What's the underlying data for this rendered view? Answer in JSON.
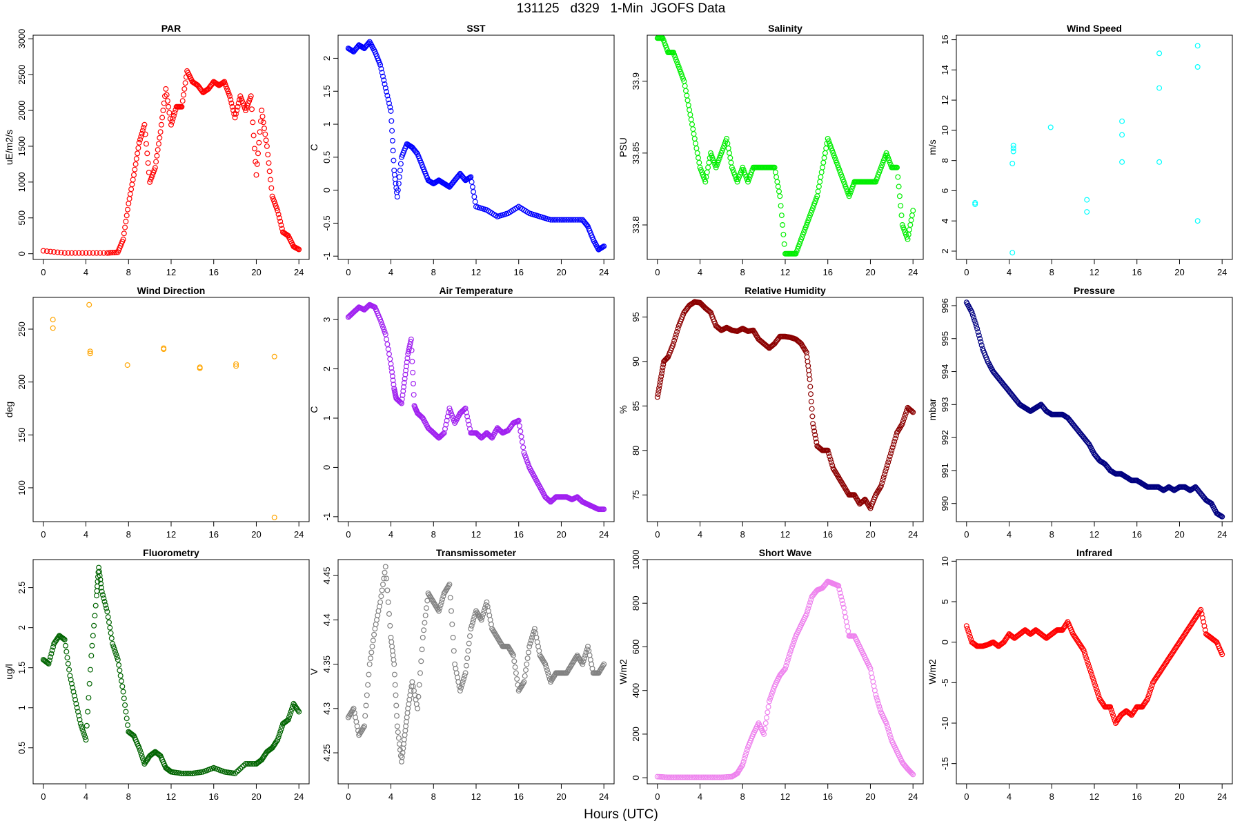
{
  "title": "131125   d329   1-Min  JGOFS Data",
  "xlabel": "Hours (UTC)",
  "chart_data": [
    {
      "type": "scatter",
      "title": "PAR",
      "ylabel": "uE/m2/s",
      "color": "#ff0000",
      "ylim": [
        -80,
        3050
      ],
      "yticks": [
        0,
        500,
        1000,
        1500,
        2000,
        2500,
        3000
      ],
      "xticks": [
        0,
        4,
        8,
        12,
        16,
        20,
        24
      ],
      "xlim": [
        -0.96,
        24.96
      ],
      "x": [
        0,
        2,
        4,
        6,
        7,
        7.5,
        8,
        8.5,
        9,
        9.5,
        10,
        10.5,
        11,
        11.5,
        12,
        12.5,
        13,
        13.5,
        14,
        14.5,
        15,
        15.5,
        16,
        16.5,
        17,
        17.5,
        18,
        18.5,
        19,
        19.5,
        20,
        20.5,
        21,
        21.5,
        22,
        22.5,
        23,
        23.5,
        24
      ],
      "y": [
        40,
        10,
        10,
        10,
        20,
        200,
        700,
        1100,
        1550,
        1800,
        1000,
        1200,
        1700,
        2300,
        1800,
        2050,
        2050,
        2550,
        2400,
        2350,
        2250,
        2300,
        2400,
        2350,
        2400,
        2200,
        1900,
        2200,
        2000,
        2200,
        1100,
        2000,
        1500,
        800,
        600,
        300,
        250,
        100,
        60
      ]
    },
    {
      "type": "scatter",
      "title": "SST",
      "ylabel": "C",
      "color": "#0000ff",
      "ylim": [
        -1.05,
        2.35
      ],
      "yticks": [
        -1,
        -0.5,
        0,
        0.5,
        1,
        1.5,
        2
      ],
      "xticks": [
        0,
        4,
        8,
        12,
        16,
        20,
        24
      ],
      "xlim": [
        -0.96,
        24.96
      ],
      "x": [
        0,
        0.5,
        1,
        1.5,
        2,
        2.5,
        3,
        3.5,
        4,
        4.3,
        4.6,
        5,
        5.5,
        6,
        6.5,
        7,
        7.5,
        8,
        8.5,
        9,
        9.5,
        10,
        10.5,
        11,
        11.5,
        12,
        13,
        14,
        15,
        16,
        17,
        18,
        19,
        20,
        21,
        22,
        22.5,
        23,
        23.5,
        24
      ],
      "y": [
        2.15,
        2.1,
        2.2,
        2.15,
        2.25,
        2.1,
        1.9,
        1.55,
        1.2,
        0.3,
        -0.1,
        0.5,
        0.7,
        0.65,
        0.55,
        0.35,
        0.15,
        0.1,
        0.15,
        0.1,
        0.05,
        0.15,
        0.25,
        0.15,
        0.2,
        -0.25,
        -0.3,
        -0.4,
        -0.35,
        -0.25,
        -0.35,
        -0.4,
        -0.45,
        -0.45,
        -0.45,
        -0.45,
        -0.55,
        -0.75,
        -0.9,
        -0.85
      ]
    },
    {
      "type": "scatter",
      "title": "Salinity",
      "ylabel": "PSU",
      "color": "#00ee00",
      "ylim": [
        33.776,
        33.932
      ],
      "yticks": [
        33.8,
        33.85,
        33.9
      ],
      "xticks": [
        0,
        4,
        8,
        12,
        16,
        20,
        24
      ],
      "xlim": [
        -0.96,
        24.96
      ],
      "x": [
        0,
        0.5,
        1,
        1.5,
        2,
        2.5,
        3,
        3.5,
        4,
        4.5,
        5,
        5.5,
        6,
        6.5,
        7,
        7.5,
        8,
        8.5,
        9,
        9.5,
        10,
        10.5,
        11,
        11.5,
        12,
        12.5,
        13,
        13.5,
        14,
        14.5,
        15,
        15.5,
        16,
        16.5,
        17,
        17.5,
        18,
        18.5,
        19,
        19.5,
        20,
        20.5,
        21,
        21.5,
        22,
        22.5,
        23,
        23.5,
        24
      ],
      "y": [
        33.93,
        33.93,
        33.92,
        33.92,
        33.91,
        33.9,
        33.88,
        33.86,
        33.84,
        33.83,
        33.85,
        33.84,
        33.85,
        33.86,
        33.84,
        33.83,
        33.84,
        33.83,
        33.84,
        33.84,
        33.84,
        33.84,
        33.84,
        33.82,
        33.78,
        33.78,
        33.78,
        33.79,
        33.8,
        33.81,
        33.82,
        33.84,
        33.86,
        33.85,
        33.84,
        33.83,
        33.82,
        33.83,
        33.83,
        33.83,
        33.83,
        33.83,
        33.84,
        33.85,
        33.84,
        33.84,
        33.8,
        33.79,
        33.81
      ]
    },
    {
      "type": "scatter",
      "title": "Wind Speed",
      "ylabel": "m/s",
      "color": "#00ffff",
      "ylim": [
        1.45,
        16.3
      ],
      "yticks": [
        2,
        4,
        6,
        8,
        10,
        12,
        14,
        16
      ],
      "xticks": [
        0,
        4,
        8,
        12,
        16,
        20,
        24
      ],
      "xlim": [
        -0.96,
        24.96
      ],
      "x": [
        0.8,
        0.8,
        4.3,
        4.3,
        4.4,
        4.4,
        4.4,
        7.9,
        11.3,
        11.3,
        14.6,
        14.6,
        14.6,
        18.1,
        18.1,
        18.1,
        21.7,
        21.7,
        21.7
      ],
      "y": [
        5.1,
        5.2,
        1.9,
        7.8,
        8.6,
        8.8,
        9,
        10.2,
        5.4,
        4.6,
        10.6,
        9.7,
        7.9,
        15.1,
        12.8,
        7.9,
        15.6,
        14.2,
        4
      ]
    },
    {
      "type": "scatter",
      "title": "Wind Direction",
      "ylabel": "deg",
      "color": "#ffa500",
      "ylim": [
        68,
        280
      ],
      "yticks": [
        100,
        150,
        200,
        250
      ],
      "xticks": [
        0,
        4,
        8,
        12,
        16,
        20,
        24
      ],
      "xlim": [
        -0.96,
        24.96
      ],
      "x": [
        0.9,
        0.9,
        4.3,
        4.4,
        4.4,
        7.9,
        11.3,
        11.3,
        14.7,
        14.7,
        18.1,
        18.1,
        21.7,
        21.7
      ],
      "y": [
        259,
        251,
        273,
        229,
        227,
        216,
        232,
        231,
        214,
        213,
        217,
        215,
        224,
        72
      ]
    },
    {
      "type": "scatter",
      "title": "Air Temperature",
      "ylabel": "C",
      "color": "#a020f0",
      "ylim": [
        -1.1,
        3.45
      ],
      "yticks": [
        -1,
        0,
        1,
        2,
        3
      ],
      "xticks": [
        0,
        4,
        8,
        12,
        16,
        20,
        24
      ],
      "xlim": [
        -0.96,
        24.96
      ],
      "x": [
        0,
        0.5,
        1,
        1.5,
        2,
        2.5,
        3,
        3.5,
        4,
        4.3,
        4.5,
        5,
        5.3,
        5.6,
        5.9,
        6.2,
        6.5,
        7,
        7.5,
        8,
        8.5,
        9,
        9.5,
        10,
        10.5,
        11,
        11.5,
        12,
        12.5,
        13,
        13.5,
        14,
        14.5,
        15,
        15.5,
        16,
        16.5,
        17,
        17.5,
        18,
        18.5,
        19,
        19.5,
        20,
        20.5,
        21,
        21.5,
        22,
        22.5,
        23,
        23.5,
        24
      ],
      "y": [
        3.05,
        3.15,
        3.25,
        3.2,
        3.3,
        3.25,
        3,
        2.7,
        2.1,
        1.6,
        1.4,
        1.3,
        1.8,
        2.3,
        2.6,
        1.25,
        1.1,
        1,
        0.8,
        0.7,
        0.6,
        0.7,
        1.2,
        0.9,
        1.1,
        1.2,
        0.7,
        0.7,
        0.6,
        0.7,
        0.6,
        0.8,
        0.7,
        0.75,
        0.9,
        0.95,
        0.3,
        0,
        -0.2,
        -0.4,
        -0.6,
        -0.7,
        -0.6,
        -0.6,
        -0.6,
        -0.65,
        -0.6,
        -0.7,
        -0.75,
        -0.8,
        -0.85,
        -0.85
      ]
    },
    {
      "type": "scatter",
      "title": "Relative Humidity",
      "ylabel": "%",
      "color": "#8b0000",
      "ylim": [
        72,
        97.2
      ],
      "yticks": [
        75,
        80,
        85,
        90,
        95
      ],
      "xticks": [
        0,
        4,
        8,
        12,
        16,
        20,
        24
      ],
      "xlim": [
        -0.96,
        24.96
      ],
      "x": [
        0,
        0.3,
        0.6,
        1,
        1.5,
        2,
        2.5,
        3,
        3.5,
        4,
        4.5,
        5,
        5.5,
        6,
        6.5,
        7,
        7.5,
        8,
        8.5,
        9,
        9.5,
        10,
        10.5,
        11,
        11.5,
        12,
        12.5,
        13,
        13.5,
        14,
        14.3,
        14.6,
        15,
        15.5,
        16,
        16.5,
        17,
        17.5,
        18,
        18.5,
        19,
        19.5,
        20,
        20.5,
        21,
        21.5,
        22,
        22.5,
        23,
        23.5,
        24
      ],
      "y": [
        86,
        88,
        90,
        90.5,
        92,
        94,
        95.5,
        96.3,
        96.7,
        96.6,
        96,
        95.5,
        94,
        93.5,
        93.8,
        93.5,
        93.4,
        93.7,
        93.4,
        93.5,
        92.5,
        92,
        91.5,
        92,
        92.8,
        92.8,
        92.7,
        92.5,
        92,
        91,
        88,
        83,
        80.5,
        80,
        80,
        78,
        77,
        76,
        75,
        75,
        74,
        74.5,
        73.5,
        75,
        76,
        78,
        80,
        82,
        83,
        84.8,
        84.3
      ]
    },
    {
      "type": "scatter",
      "title": "Pressure",
      "ylabel": "mbar",
      "color": "#000080",
      "ylim": [
        989.45,
        996.25
      ],
      "yticks": [
        990,
        991,
        992,
        993,
        994,
        995,
        996
      ],
      "xticks": [
        0,
        4,
        8,
        12,
        16,
        20,
        24
      ],
      "xlim": [
        -0.96,
        24.96
      ],
      "x": [
        0,
        0.5,
        1,
        1.5,
        2,
        2.5,
        3,
        3.5,
        4,
        4.5,
        5,
        5.5,
        6,
        6.5,
        7,
        7.5,
        8,
        8.5,
        9,
        9.5,
        10,
        10.5,
        11,
        11.5,
        12,
        12.5,
        13,
        13.5,
        14,
        14.5,
        15,
        15.5,
        16,
        16.5,
        17,
        17.5,
        18,
        18.5,
        19,
        19.5,
        20,
        20.5,
        21,
        21.5,
        22,
        22.5,
        23,
        23.5,
        24
      ],
      "y": [
        996.1,
        995.8,
        995.3,
        994.7,
        994.3,
        994,
        993.8,
        993.6,
        993.4,
        993.2,
        993,
        992.9,
        992.8,
        992.9,
        993,
        992.8,
        992.7,
        992.7,
        992.7,
        992.6,
        992.4,
        992.2,
        992,
        991.8,
        991.5,
        991.3,
        991.2,
        991,
        990.9,
        990.9,
        990.8,
        990.7,
        990.7,
        990.6,
        990.5,
        990.5,
        990.5,
        990.4,
        990.5,
        990.4,
        990.5,
        990.5,
        990.4,
        990.5,
        990.3,
        990.1,
        990,
        989.7,
        989.6
      ]
    },
    {
      "type": "scatter",
      "title": "Fluorometry",
      "ylabel": "ug/l",
      "color": "#006400",
      "ylim": [
        0.05,
        2.85
      ],
      "yticks": [
        0.5,
        1,
        1.5,
        2,
        2.5
      ],
      "xticks": [
        0,
        4,
        8,
        12,
        16,
        20,
        24
      ],
      "xlim": [
        -0.96,
        24.96
      ],
      "x": [
        0,
        0.5,
        1,
        1.5,
        2,
        2.5,
        3,
        3.5,
        4,
        4.5,
        5,
        5.2,
        5.5,
        6,
        6.5,
        7,
        7.5,
        8,
        8.5,
        9,
        9.5,
        10,
        10.5,
        11,
        11.5,
        12,
        13,
        14,
        15,
        16,
        17,
        18,
        19,
        20,
        20.5,
        21,
        21.5,
        22,
        22.5,
        23,
        23.5,
        24
      ],
      "y": [
        1.6,
        1.55,
        1.8,
        1.9,
        1.85,
        1.4,
        1.1,
        0.8,
        0.6,
        1.65,
        2.4,
        2.75,
        2.45,
        2.2,
        1.8,
        1.6,
        1.2,
        0.7,
        0.65,
        0.5,
        0.3,
        0.4,
        0.45,
        0.4,
        0.25,
        0.2,
        0.18,
        0.18,
        0.2,
        0.25,
        0.2,
        0.18,
        0.3,
        0.3,
        0.35,
        0.45,
        0.5,
        0.6,
        0.8,
        0.85,
        1.05,
        0.95
      ]
    },
    {
      "type": "scatter",
      "title": "Transmissometer",
      "ylabel": "V",
      "color": "#808080",
      "ylim": [
        4.215,
        4.468
      ],
      "yticks": [
        4.25,
        4.3,
        4.35,
        4.4,
        4.45
      ],
      "xticks": [
        0,
        4,
        8,
        12,
        16,
        20,
        24
      ],
      "xlim": [
        -0.96,
        24.96
      ],
      "x": [
        0,
        0.5,
        1,
        1.5,
        2,
        2.5,
        3,
        3.5,
        4,
        4.3,
        4.6,
        5,
        5.3,
        5.6,
        6,
        6.5,
        7,
        7.5,
        8,
        8.5,
        9,
        9.5,
        10,
        10.5,
        11,
        11.5,
        12,
        12.5,
        13,
        13.5,
        14,
        14.5,
        15,
        15.5,
        16,
        16.5,
        17,
        17.5,
        18,
        18.5,
        19,
        19.5,
        20,
        20.5,
        21,
        21.5,
        22,
        22.5,
        23,
        23.5,
        24
      ],
      "y": [
        4.29,
        4.3,
        4.27,
        4.28,
        4.35,
        4.39,
        4.42,
        4.46,
        4.38,
        4.35,
        4.28,
        4.24,
        4.27,
        4.3,
        4.33,
        4.3,
        4.38,
        4.43,
        4.42,
        4.41,
        4.43,
        4.44,
        4.35,
        4.32,
        4.34,
        4.39,
        4.41,
        4.4,
        4.42,
        4.39,
        4.38,
        4.37,
        4.37,
        4.36,
        4.32,
        4.33,
        4.37,
        4.39,
        4.36,
        4.35,
        4.33,
        4.34,
        4.34,
        4.34,
        4.35,
        4.36,
        4.35,
        4.37,
        4.34,
        4.34,
        4.35
      ]
    },
    {
      "type": "scatter",
      "title": "Short Wave",
      "ylabel": "W/m2",
      "color": "#ee82ee",
      "ylim": [
        -28,
        1000
      ],
      "yticks": [
        0,
        200,
        400,
        600,
        800,
        1000
      ],
      "xticks": [
        0,
        4,
        8,
        12,
        16,
        20,
        24
      ],
      "xlim": [
        -0.96,
        24.96
      ],
      "x": [
        0,
        1,
        2,
        3,
        4,
        5,
        6,
        7,
        7.5,
        8,
        8.5,
        9,
        9.5,
        10,
        10.5,
        11,
        11.5,
        12,
        12.5,
        13,
        13.5,
        14,
        14.5,
        15,
        15.5,
        16,
        16.5,
        17,
        17.5,
        18,
        18.5,
        19,
        19.5,
        20,
        20.5,
        21,
        21.5,
        22,
        22.5,
        23,
        23.5,
        24
      ],
      "y": [
        5,
        2,
        2,
        2,
        2,
        2,
        2,
        5,
        20,
        60,
        140,
        200,
        250,
        200,
        350,
        420,
        470,
        500,
        580,
        650,
        700,
        750,
        830,
        860,
        870,
        900,
        890,
        880,
        780,
        650,
        650,
        600,
        550,
        500,
        380,
        300,
        250,
        170,
        120,
        70,
        40,
        15
      ]
    },
    {
      "type": "scatter",
      "title": "Infrared",
      "ylabel": "W/m2",
      "color": "#ff0000",
      "ylim": [
        -17.5,
        10.2
      ],
      "yticks": [
        -15,
        -10,
        -5,
        0,
        5,
        10
      ],
      "xticks": [
        0,
        4,
        8,
        12,
        16,
        20,
        24
      ],
      "xlim": [
        -0.96,
        24.96
      ],
      "x": [
        0,
        0.5,
        1,
        1.5,
        2,
        2.5,
        3,
        3.5,
        4,
        4.5,
        5,
        5.5,
        6,
        6.5,
        7,
        7.5,
        8,
        8.5,
        9,
        9.5,
        10,
        10.5,
        11,
        11.5,
        12,
        12.5,
        13,
        13.5,
        14,
        14.5,
        15,
        15.5,
        16,
        16.5,
        17,
        17.5,
        18,
        18.5,
        19,
        19.5,
        20,
        20.5,
        21,
        21.5,
        22,
        22.5,
        23,
        23.5,
        24
      ],
      "y": [
        2,
        0,
        -0.5,
        -0.5,
        -0.3,
        0,
        -0.5,
        0,
        1,
        0.5,
        1,
        1.5,
        1,
        1.5,
        1,
        0.5,
        1,
        1.5,
        1.5,
        2.5,
        1,
        0,
        -1,
        -3,
        -5,
        -7,
        -8,
        -8,
        -10,
        -9,
        -8.5,
        -9,
        -8,
        -8,
        -7,
        -5,
        -4,
        -3,
        -2,
        -1,
        0,
        1,
        2,
        3,
        4,
        1,
        0.5,
        0,
        -1.5
      ]
    }
  ]
}
